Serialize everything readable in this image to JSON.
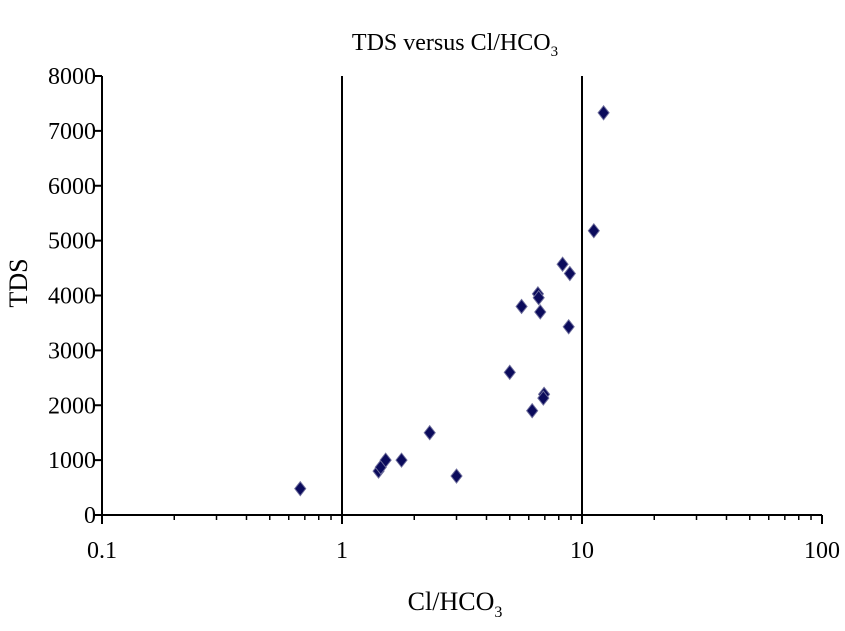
{
  "chart_data": {
    "type": "scatter",
    "title": "TDS versus Cl/HCO",
    "title_subscript": "3",
    "xlabel": "Cl/HCO",
    "xlabel_subscript": "3",
    "ylabel": "TDS",
    "x_scale": "log",
    "xlim": [
      0.1,
      100
    ],
    "ylim": [
      0,
      8000
    ],
    "x_ticks": [
      0.1,
      1,
      10,
      100
    ],
    "x_tick_labels": [
      "0.1",
      "1",
      "10",
      "100"
    ],
    "y_ticks": [
      0,
      1000,
      2000,
      3000,
      4000,
      5000,
      6000,
      7000,
      8000
    ],
    "y_tick_labels": [
      "0",
      "1000",
      "2000",
      "3000",
      "4000",
      "5000",
      "6000",
      "7000",
      "8000"
    ],
    "vertical_gridlines_at": [
      1,
      10
    ],
    "marker": "diamond",
    "marker_color": "#0b0b5c",
    "legend": "none",
    "points": [
      {
        "x": 0.67,
        "y": 480
      },
      {
        "x": 1.42,
        "y": 800
      },
      {
        "x": 1.45,
        "y": 870
      },
      {
        "x": 1.52,
        "y": 1000
      },
      {
        "x": 1.77,
        "y": 1000
      },
      {
        "x": 2.32,
        "y": 1500
      },
      {
        "x": 3.0,
        "y": 710
      },
      {
        "x": 5.0,
        "y": 2600
      },
      {
        "x": 5.6,
        "y": 3800
      },
      {
        "x": 6.2,
        "y": 1900
      },
      {
        "x": 6.55,
        "y": 4030
      },
      {
        "x": 6.6,
        "y": 3960
      },
      {
        "x": 6.7,
        "y": 3700
      },
      {
        "x": 6.95,
        "y": 2200
      },
      {
        "x": 6.9,
        "y": 2130
      },
      {
        "x": 8.3,
        "y": 4570
      },
      {
        "x": 8.9,
        "y": 4400
      },
      {
        "x": 8.8,
        "y": 3430
      },
      {
        "x": 11.2,
        "y": 5180
      },
      {
        "x": 12.3,
        "y": 7330
      }
    ]
  }
}
